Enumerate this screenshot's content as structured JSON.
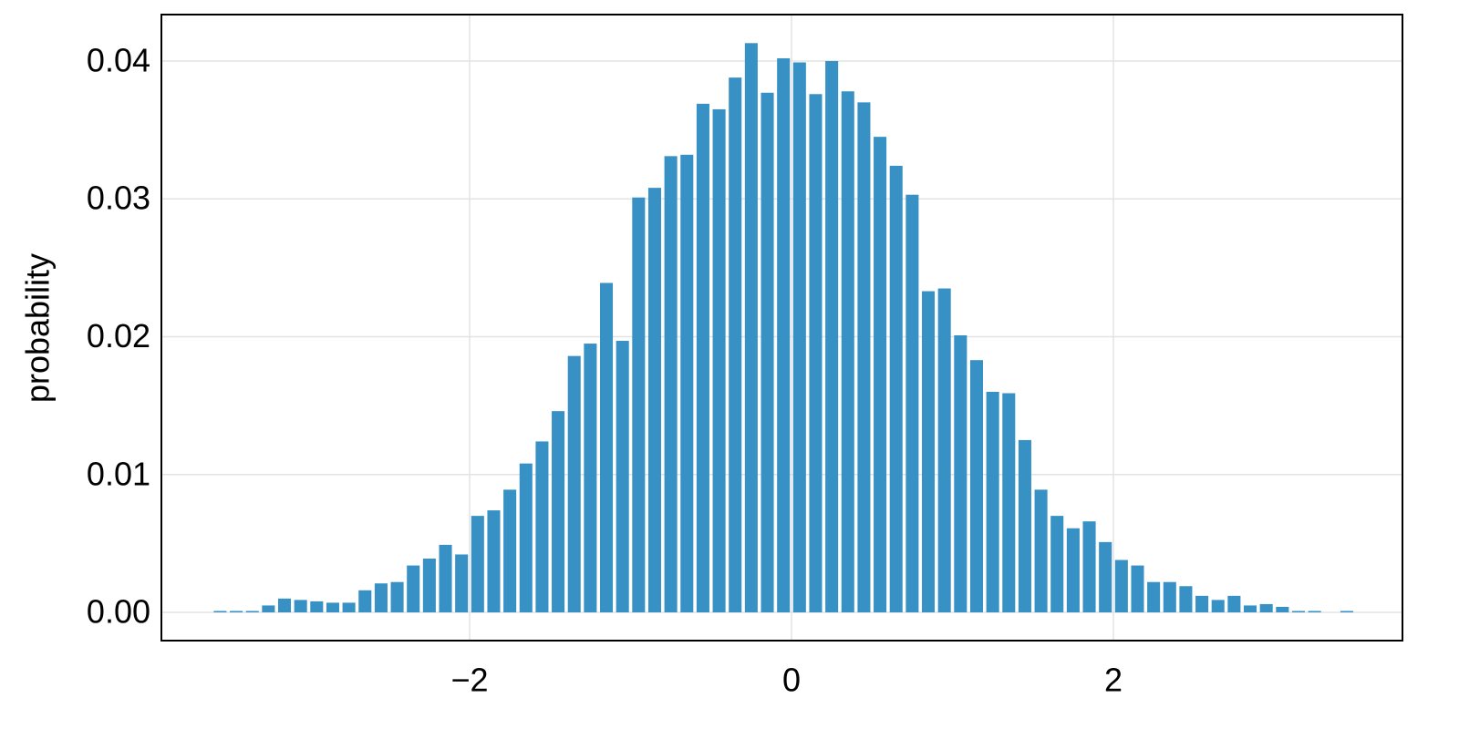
{
  "chart_data": {
    "type": "histogram",
    "y_label": "probability",
    "color": "#3891c4",
    "grid": true,
    "bins": [
      -3.6,
      -3.5,
      -3.4,
      -3.3,
      -3.2,
      -3.1,
      -3.0,
      -2.9,
      -2.8,
      -2.7,
      -2.6,
      -2.5,
      -2.4,
      -2.3,
      -2.2,
      -2.1,
      -2.0,
      -1.9,
      -1.8,
      -1.7,
      -1.6,
      -1.5,
      -1.4,
      -1.3,
      -1.2,
      -1.1,
      -1.0,
      -0.9,
      -0.8,
      -0.7,
      -0.6,
      -0.5,
      -0.4,
      -0.3,
      -0.2,
      -0.1,
      0.0,
      0.1,
      0.2,
      0.3,
      0.4,
      0.5,
      0.6,
      0.7,
      0.8,
      0.9,
      1.0,
      1.1,
      1.2,
      1.3,
      1.4,
      1.5,
      1.6,
      1.7,
      1.8,
      1.9,
      2.0,
      2.1,
      2.2,
      2.3,
      2.4,
      2.5,
      2.6,
      2.7,
      2.8,
      2.9,
      3.0,
      3.1,
      3.2,
      3.3,
      3.4,
      3.5
    ],
    "values": [
      0.0001,
      0.0001,
      0.0001,
      0.0005,
      0.001,
      0.0009,
      0.0008,
      0.0007,
      0.0007,
      0.0016,
      0.0021,
      0.0022,
      0.0034,
      0.0039,
      0.0049,
      0.0042,
      0.007,
      0.0074,
      0.0089,
      0.0108,
      0.0124,
      0.0146,
      0.0186,
      0.0195,
      0.0239,
      0.0197,
      0.0301,
      0.0308,
      0.0331,
      0.0332,
      0.0369,
      0.0365,
      0.0388,
      0.0413,
      0.0377,
      0.0402,
      0.0399,
      0.0376,
      0.04,
      0.0378,
      0.037,
      0.0345,
      0.0324,
      0.0303,
      0.0233,
      0.0235,
      0.0201,
      0.0183,
      0.016,
      0.0159,
      0.0125,
      0.0089,
      0.007,
      0.0061,
      0.0066,
      0.0051,
      0.0038,
      0.0034,
      0.0022,
      0.0022,
      0.0019,
      0.0012,
      0.0009,
      0.0012,
      0.0005,
      0.0006,
      0.0004,
      0.0001,
      0.0001,
      0,
      0.0001
    ],
    "xlim": [
      -3.915,
      3.796
    ],
    "ylim": [
      -0.00205,
      0.04337
    ],
    "xticks": [
      {
        "value": -2,
        "label": "−2"
      },
      0,
      2
    ],
    "yticks": [
      {
        "value": 0,
        "label": "0.00"
      },
      0.01,
      0.02,
      0.03,
      0.04
    ]
  }
}
